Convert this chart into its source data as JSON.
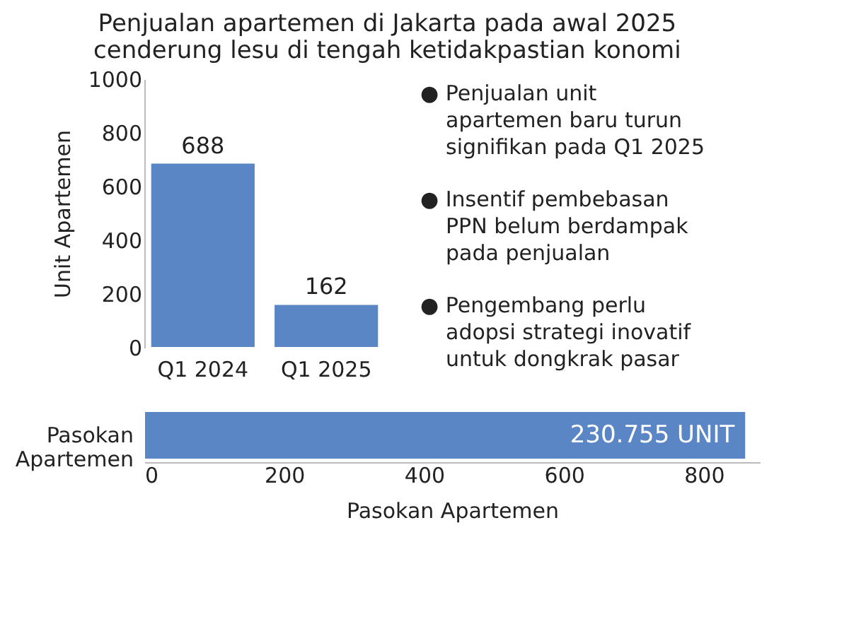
{
  "chart_data": [
    {
      "type": "bar",
      "title": "Penjualan apartemen di Jakarta pada awal 2025\ncenderung lesu di tengah ketidakpastian konomi",
      "categories": [
        "Q1 2024",
        "Q1 2025"
      ],
      "values": [
        688,
        162
      ],
      "color": "#5b86c5",
      "ylabel": "Unit Apartemen",
      "ylim": [
        0,
        1000
      ],
      "yticks": [
        0,
        200,
        400,
        600,
        800,
        1000
      ],
      "data_labels": true,
      "grid": false
    },
    {
      "type": "other",
      "annotations": [
        "● Penjualan unit\napartemen baru turun\nsignifikan pada Q1 2025",
        "● Insentif pembebasan\nPPN belum berdampak\npada penjualan",
        "● Pengembang perlu\nadopsi strategi inovatif\nuntuk dongkrak pasar"
      ]
    },
    {
      "type": "bar",
      "orientation": "horizontal",
      "categories": [
        "Pasokan Apartemen"
      ],
      "values": [
        860
      ],
      "annotations": [
        {
          "text": "230.755 UNIT",
          "x": 860,
          "y": "Pasokan Apartemen"
        }
      ],
      "color": "#5b86c5",
      "xlabel": "Pasokan Apartemen",
      "xlim": [
        0,
        880
      ],
      "xticks": [
        0,
        200,
        400,
        600,
        800
      ],
      "grid": false
    }
  ]
}
